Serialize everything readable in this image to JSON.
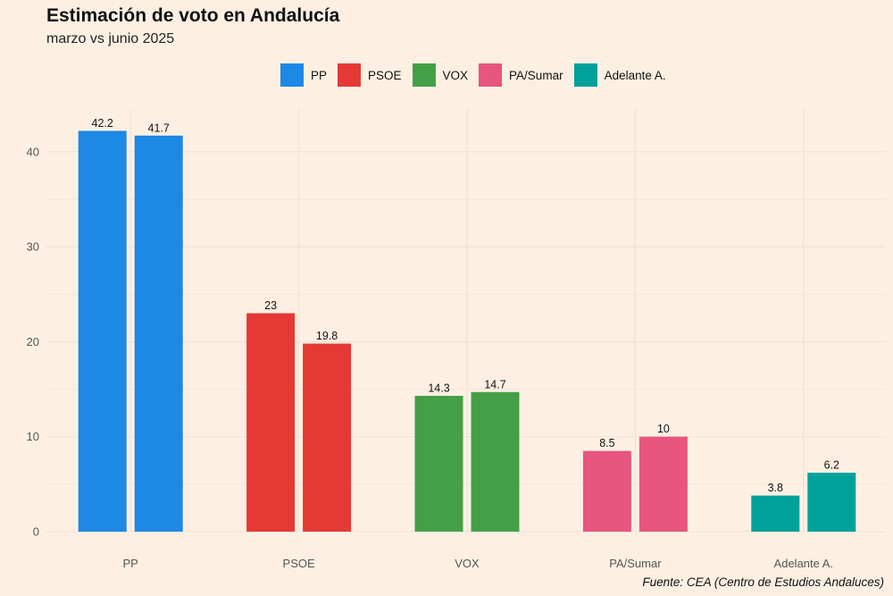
{
  "chart_data": {
    "type": "bar",
    "title": "Estimación de voto en Andalucía",
    "subtitle": "marzo vs junio 2025",
    "categories": [
      "PP",
      "PSOE",
      "VOX",
      "PA/Sumar",
      "Adelante A."
    ],
    "colors": [
      "#1e88e5",
      "#e53935",
      "#43a047",
      "#e8557f",
      "#00a19a"
    ],
    "series": [
      {
        "name": "marzo 2025",
        "values": [
          42.2,
          23,
          14.3,
          8.5,
          3.8
        ]
      },
      {
        "name": "junio 2025",
        "values": [
          41.7,
          19.8,
          14.7,
          10,
          6.2
        ]
      }
    ],
    "value_labels": [
      [
        "42.2",
        "23",
        "14.3",
        "8.5",
        "3.8"
      ],
      [
        "41.7",
        "19.8",
        "14.7",
        "10",
        "6.2"
      ]
    ],
    "ylim": [
      0,
      44.5
    ],
    "yticks": [
      "0",
      "10",
      "20",
      "30",
      "40"
    ],
    "legend": [
      "PP",
      "PSOE",
      "VOX",
      "PA/Sumar",
      "Adelante A."
    ],
    "legend_position": "top",
    "xlabel": "",
    "ylabel": "",
    "source": "Fuente: CEA (Centro de Estudios Andaluces)"
  }
}
